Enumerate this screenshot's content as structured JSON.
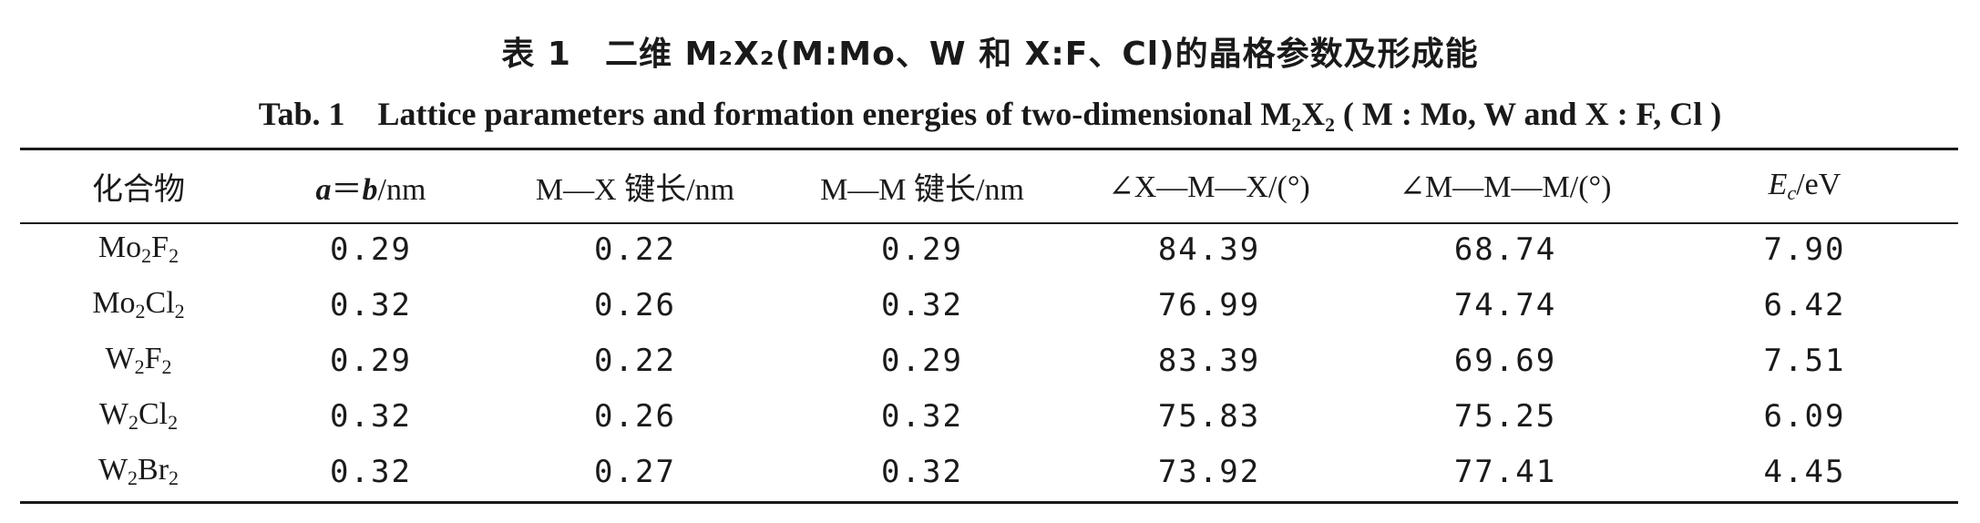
{
  "caption": {
    "cn": "表 1　二维 M₂X₂(M:Mo、W 和 X:F、Cl)的晶格参数及形成能",
    "en": "Tab. 1　Lattice parameters and formation energies of two-dimensional M₂X₂ ( M : Mo, W and X : F, Cl )"
  },
  "table": {
    "headers": {
      "compound": "化合物",
      "a": "a",
      "eq": "＝",
      "b": "b",
      "ab_unit": "/nm",
      "mx_bond": "M—X 键长/nm",
      "mm_bond": "M—M 键长/nm",
      "xmx_angle": "∠X—M—X/(°)",
      "mmm_angle": "∠M—M—M/(°)",
      "ec_symbol": "E",
      "ec_sub": "c",
      "ec_unit": "/eV"
    },
    "rows": [
      {
        "m": "Mo",
        "m_n": "2",
        "x": "F",
        "x_n": "2",
        "ab": "0.29",
        "mx": "0.22",
        "mm": "0.29",
        "xmx": "84.39",
        "mmm": "68.74",
        "ec": "7.90"
      },
      {
        "m": "Mo",
        "m_n": "2",
        "x": "Cl",
        "x_n": "2",
        "ab": "0.32",
        "mx": "0.26",
        "mm": "0.32",
        "xmx": "76.99",
        "mmm": "74.74",
        "ec": "6.42"
      },
      {
        "m": "W",
        "m_n": "2",
        "x": "F",
        "x_n": "2",
        "ab": "0.29",
        "mx": "0.22",
        "mm": "0.29",
        "xmx": "83.39",
        "mmm": "69.69",
        "ec": "7.51"
      },
      {
        "m": "W",
        "m_n": "2",
        "x": "Cl",
        "x_n": "2",
        "ab": "0.32",
        "mx": "0.26",
        "mm": "0.32",
        "xmx": "75.83",
        "mmm": "75.25",
        "ec": "6.09"
      },
      {
        "m": "W",
        "m_n": "2",
        "x": "Br",
        "x_n": "2",
        "ab": "0.32",
        "mx": "0.27",
        "mm": "0.32",
        "xmx": "73.92",
        "mmm": "77.41",
        "ec": "4.45"
      }
    ]
  }
}
